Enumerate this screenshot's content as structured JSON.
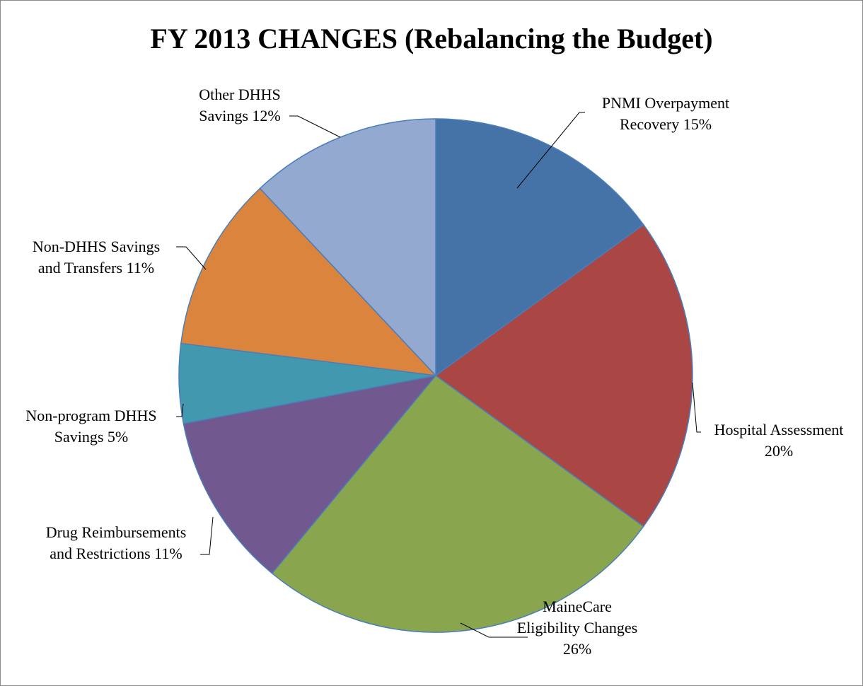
{
  "chart_data": {
    "type": "pie",
    "title": "FY 2013 CHANGES (Rebalancing the Budget)",
    "categories": [
      "PNMI Overpayment Recovery",
      "Hospital Assessment",
      "MaineCare Eligibility Changes",
      "Drug Reimbursements and Restrictions",
      "Non-program DHHS Savings",
      "Non-DHHS Savings and Transfers",
      "Other DHHS Savings"
    ],
    "values": [
      15,
      20,
      26,
      11,
      5,
      11,
      12
    ],
    "value_labels": [
      "15%",
      "20%",
      "26%",
      "11%",
      "5%",
      "11%",
      "12%"
    ],
    "colors": [
      "#4573a7",
      "#aa4644",
      "#89a54e",
      "#71588f",
      "#4298af",
      "#db843d",
      "#93a9cf"
    ]
  }
}
